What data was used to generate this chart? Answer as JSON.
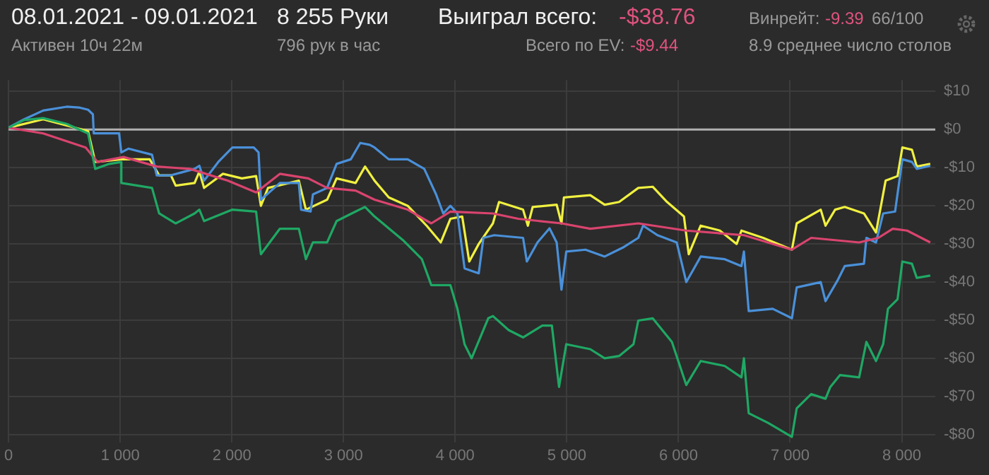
{
  "chart_data": {
    "type": "line",
    "title": "08.01.2021 - 09.01.2021",
    "subtitle": "Активен 10ч 22м",
    "annotations": [
      "8 255 Руки",
      "796 рук в час",
      "Выиграл всего:",
      "-$38.76",
      "Всего по EV:",
      "-$9.44",
      "Винрейт:",
      "-9.39",
      "66/100",
      "8.9 среднее число столов"
    ],
    "xlim": [
      0,
      8300
    ],
    "xticks": [
      0,
      {
        "value": 1000,
        "label": "1 000"
      },
      {
        "value": 2000,
        "label": "2 000"
      },
      {
        "value": 3000,
        "label": "3 000"
      },
      {
        "value": 4000,
        "label": "4 000"
      },
      {
        "value": 5000,
        "label": "5 000"
      },
      {
        "value": 6000,
        "label": "6 000"
      },
      {
        "value": 7000,
        "label": "7 000"
      },
      {
        "value": 8000,
        "label": "8 000"
      }
    ],
    "ylim": [
      -82,
      13
    ],
    "yticks": [
      {
        "value": 10,
        "label": "$10"
      },
      {
        "value": 0,
        "label": "$0"
      },
      {
        "value": -10,
        "label": "-$10"
      },
      {
        "value": -20,
        "label": "-$20"
      },
      {
        "value": -30,
        "label": "-$30"
      },
      {
        "value": -40,
        "label": "-$40"
      },
      {
        "value": -50,
        "label": "-$50"
      },
      {
        "value": -60,
        "label": "-$60"
      },
      {
        "value": -70,
        "label": "-$70"
      },
      {
        "value": -80,
        "label": "-$80"
      }
    ],
    "grid": true,
    "legend": false,
    "marker": "none",
    "line_style": "solid",
    "ref_lines": [
      {
        "axis": "y",
        "value": 0,
        "label": null,
        "color": "#b0b0b0"
      }
    ],
    "series": [
      {
        "color": "#1fa864",
        "x": [
          0,
          140,
          310,
          520,
          712,
          776,
          903,
          1010,
          1010,
          1285,
          1349,
          1497,
          1666,
          1709,
          1751,
          2005,
          2217,
          2260,
          2430,
          2600,
          2663,
          2726,
          2853,
          2938,
          3108,
          3193,
          3278,
          3532,
          3702,
          3786,
          3957,
          4020,
          4084,
          4147,
          4296,
          4338,
          4479,
          4608,
          4780,
          4866,
          4930,
          4995,
          5210,
          5339,
          5468,
          5597,
          5640,
          5769,
          5941,
          6070,
          6199,
          6414,
          6564,
          6586,
          6629,
          6801,
          7016,
          7059,
          7188,
          7317,
          7360,
          7446,
          7618,
          7683,
          7769,
          7833,
          7876,
          7962,
          8005,
          8091,
          8134,
          8255
        ],
        "values": [
          0.5,
          2.5,
          3,
          1.5,
          -1,
          -10.3,
          -9,
          -8.5,
          -14,
          -15.3,
          -22,
          -24.6,
          -22,
          -21,
          -24,
          -21,
          -21.5,
          -32.7,
          -26,
          -26,
          -34,
          -29.6,
          -29.6,
          -24,
          -21.5,
          -20.3,
          -22.8,
          -29,
          -34,
          -40.8,
          -40.8,
          -47,
          -56.3,
          -60,
          -49.5,
          -48.9,
          -52.6,
          -54.5,
          -51.4,
          -51.4,
          -67.5,
          -56.3,
          -57.6,
          -60,
          -59.4,
          -56.3,
          -50.1,
          -49.5,
          -55.7,
          -67,
          -60.7,
          -62,
          -65,
          -60,
          -74.4,
          -76.9,
          -80.6,
          -73.1,
          -69.4,
          -70.6,
          -67.5,
          -64.4,
          -65,
          -55.7,
          -60.7,
          -56.3,
          -47,
          -44.5,
          -34.6,
          -35.2,
          -38.9,
          -38.3
        ]
      },
      {
        "color": "#d9446e",
        "x": [
          0,
          310,
          691,
          797,
          1030,
          1327,
          1624,
          1963,
          2217,
          2430,
          2684,
          2853,
          3108,
          3278,
          3575,
          3786,
          3957,
          4338,
          4565,
          4952,
          5210,
          5640,
          6070,
          6586,
          7016,
          7188,
          7618,
          7790,
          7919,
          8048,
          8255
        ],
        "values": [
          0.5,
          -1,
          -4.7,
          -8.5,
          -7.2,
          -9.7,
          -10.3,
          -13.4,
          -16.5,
          -11.6,
          -12.8,
          -15.3,
          -16,
          -18.4,
          -21,
          -24.6,
          -21.5,
          -22,
          -23.4,
          -24.6,
          -26,
          -24.6,
          -26.5,
          -27.7,
          -31.5,
          -28.4,
          -29.6,
          -28.4,
          -26,
          -26.5,
          -29.6
        ]
      },
      {
        "color": "#4a90d9",
        "x": [
          0,
          140,
          310,
          520,
          630,
          712,
          755,
          763,
          990,
          1010,
          1073,
          1285,
          1327,
          1454,
          1666,
          1709,
          1751,
          1878,
          2005,
          2196,
          2239,
          2260,
          2430,
          2600,
          2620,
          2705,
          2726,
          2853,
          2938,
          3065,
          3150,
          3235,
          3278,
          3405,
          3575,
          3723,
          3829,
          3893,
          3957,
          4020,
          4084,
          4211,
          4253,
          4350,
          4608,
          4642,
          4737,
          4845,
          4909,
          4952,
          4995,
          5167,
          5339,
          5511,
          5640,
          5683,
          5812,
          5984,
          6070,
          6199,
          6414,
          6564,
          6586,
          6629,
          6844,
          7016,
          7059,
          7274,
          7317,
          7424,
          7489,
          7661,
          7683,
          7769,
          7833,
          7940,
          8005,
          8091,
          8134,
          8255
        ],
        "values": [
          0.5,
          2.7,
          5,
          6,
          5.8,
          5.2,
          4,
          -1,
          -1,
          -6,
          -5,
          -6.6,
          -12,
          -12,
          -10.3,
          -9.5,
          -13.4,
          -8.5,
          -4.7,
          -4.7,
          -6,
          -18.4,
          -14,
          -14,
          -21,
          -21.5,
          -17,
          -15.3,
          -9,
          -7.8,
          -3.5,
          -4,
          -4.7,
          -7.8,
          -7.8,
          -10.3,
          -17,
          -22,
          -20,
          -22,
          -36.4,
          -37.7,
          -28.4,
          -27.7,
          -28.4,
          -34.6,
          -29.6,
          -25.9,
          -29.6,
          -42,
          -32,
          -31.5,
          -33.3,
          -30.8,
          -28.4,
          -25.2,
          -27.7,
          -29.6,
          -40,
          -33.3,
          -34,
          -35.8,
          -32,
          -47.6,
          -47,
          -49.5,
          -41.4,
          -40,
          -45,
          -39.6,
          -35.8,
          -35.2,
          -28.4,
          -29.6,
          -22,
          -21.5,
          -7.8,
          -8.5,
          -10.3,
          -9.5
        ]
      },
      {
        "color": "#f0f040",
        "x": [
          0,
          310,
          712,
          776,
          1010,
          1264,
          1349,
          1454,
          1497,
          1666,
          1709,
          1751,
          1920,
          2090,
          2217,
          2260,
          2324,
          2600,
          2663,
          2853,
          2938,
          3108,
          3193,
          3278,
          3405,
          3575,
          3744,
          3871,
          3957,
          4063,
          4126,
          4211,
          4338,
          4393,
          4608,
          4651,
          4694,
          4909,
          4952,
          4974,
          5210,
          5339,
          5468,
          5640,
          5769,
          5898,
          6049,
          6092,
          6199,
          6371,
          6521,
          6564,
          6758,
          7016,
          7059,
          7274,
          7317,
          7403,
          7489,
          7661,
          7769,
          7855,
          7962,
          8005,
          8091,
          8134,
          8255
        ],
        "values": [
          0.5,
          2.7,
          -0.4,
          -8.5,
          -7.8,
          -7.8,
          -12,
          -12,
          -14.7,
          -14,
          -11,
          -15.3,
          -11.6,
          -12.8,
          -12.2,
          -20,
          -15.3,
          -13.4,
          -21,
          -18.4,
          -12.8,
          -14,
          -9.7,
          -13.4,
          -17.8,
          -20,
          -25.2,
          -29.6,
          -23.4,
          -22.8,
          -34.6,
          -30,
          -24.6,
          -19,
          -21,
          -25.2,
          -20.3,
          -19.7,
          -24.6,
          -17.8,
          -17.2,
          -19.7,
          -19,
          -15.3,
          -15,
          -19,
          -22.8,
          -32.7,
          -25.2,
          -26.5,
          -30,
          -26.5,
          -28.4,
          -31.5,
          -24.6,
          -21,
          -25.2,
          -21,
          -20.3,
          -22,
          -27,
          -13.4,
          -12.2,
          -4.7,
          -5.3,
          -9.7,
          -9
        ]
      }
    ]
  }
}
